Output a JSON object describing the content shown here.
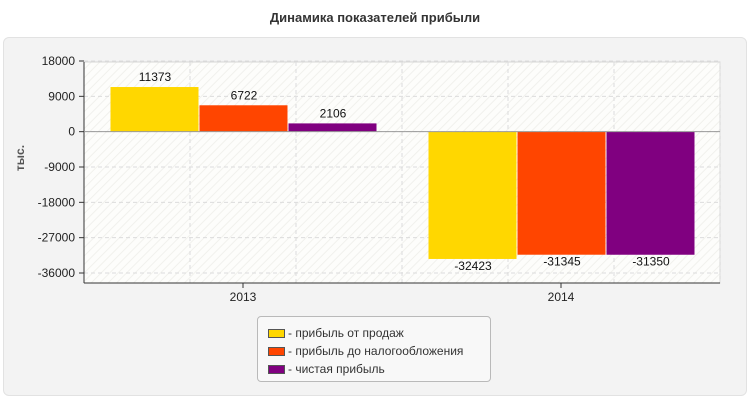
{
  "chart_data": {
    "type": "bar",
    "title": "Динамика показателей прибыли",
    "ylabel": "тыс.",
    "xlabel": "",
    "categories": [
      "2013",
      "2014"
    ],
    "series": [
      {
        "name": "прибыль от продаж",
        "color": "#ffd700",
        "values": [
          11373,
          -32423
        ]
      },
      {
        "name": "прибыль до налогообложения",
        "color": "#ff4500",
        "values": [
          6722,
          -31345
        ]
      },
      {
        "name": "чистая прибыль",
        "color": "#800080",
        "values": [
          2106,
          -31350
        ]
      }
    ],
    "ylim": [
      -36000,
      18000
    ],
    "yticks": [
      18000,
      9000,
      0,
      -9000,
      -18000,
      -27000,
      -36000
    ],
    "grid": true,
    "legend_position": "bottom-center",
    "legend_prefix": "- "
  }
}
